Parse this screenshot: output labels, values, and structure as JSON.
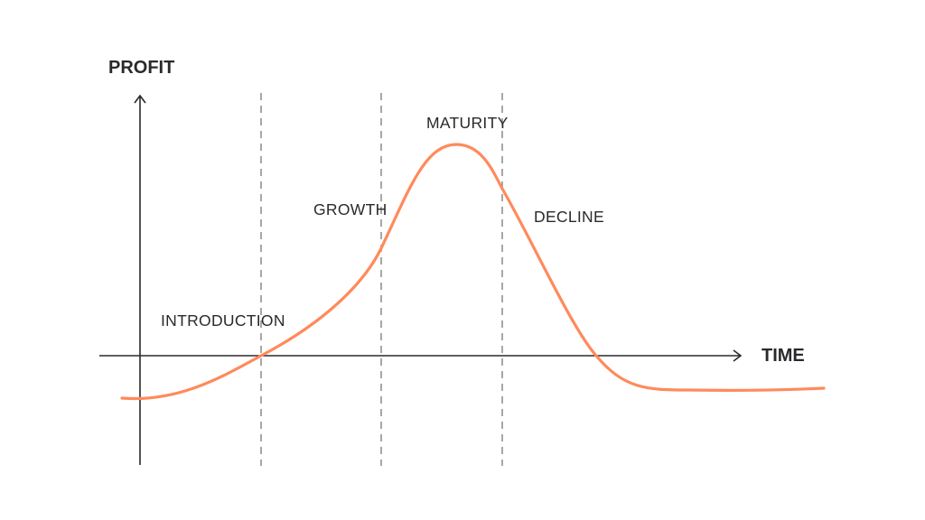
{
  "diagram": {
    "y_axis_label": "PROFIT",
    "x_axis_label": "TIME",
    "stages": [
      {
        "label": "INTRODUCTION"
      },
      {
        "label": "GROWTH"
      },
      {
        "label": "MATURITY"
      },
      {
        "label": "DECLINE"
      }
    ],
    "colors": {
      "curve": "#ff8a5b",
      "axes": "#2a2a2e",
      "dividers": "#8a8a8a"
    }
  }
}
